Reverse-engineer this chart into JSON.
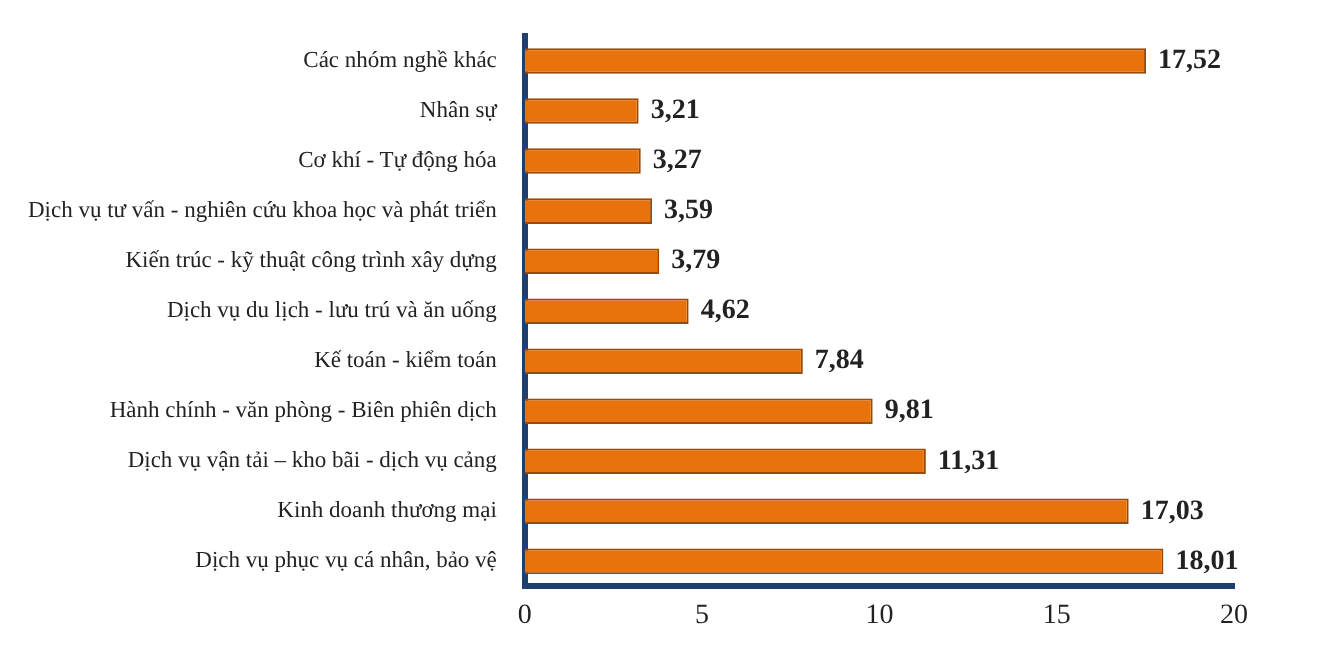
{
  "chart_data": {
    "type": "bar",
    "orientation": "horizontal",
    "categories": [
      "Các nhóm nghề khác",
      "Nhân sự",
      "Cơ khí - Tự động hóa",
      "Dịch vụ tư vấn - nghiên cứu khoa học và phát triển",
      "Kiến trúc - kỹ thuật công trình xây dựng",
      "Dịch vụ du lịch - lưu trú và ăn uống",
      "Kế toán - kiểm toán",
      "Hành chính - văn phòng - Biên phiên dịch",
      "Dịch vụ vận tải – kho bãi - dịch vụ cảng",
      "Kinh doanh thương mại",
      "Dịch vụ phục vụ cá nhân, bảo vệ"
    ],
    "values": [
      17.52,
      3.21,
      3.27,
      3.59,
      3.79,
      4.62,
      7.84,
      9.81,
      11.31,
      17.03,
      18.01
    ],
    "value_labels": [
      "17,52",
      "3,21",
      "3,27",
      "3,59",
      "3,79",
      "4,62",
      "7,84",
      "9,81",
      "11,31",
      "17,03",
      "18,01"
    ],
    "color": "#e8720c",
    "xlim": [
      0,
      20
    ],
    "xticks": [
      0,
      5,
      10,
      15,
      20
    ],
    "grid": false,
    "legend": false
  }
}
